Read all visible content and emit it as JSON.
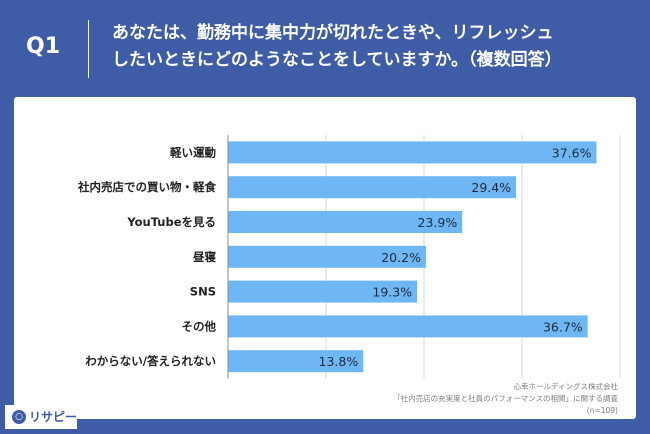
{
  "question": {
    "label": "Q1",
    "line1": "あなたは、勤務中に集中力が切れたときや、リフレッシュ",
    "line2": "したいときにどのようなことをしていますか。（複数回答）"
  },
  "chart_data": {
    "type": "bar",
    "orientation": "horizontal",
    "categories": [
      "軽い運動",
      "社内売店での買い物・軽食",
      "YouTubeを見る",
      "昼寝",
      "SNS",
      "その他",
      "わからない/答えられない"
    ],
    "values": [
      37.6,
      29.4,
      23.9,
      20.2,
      19.3,
      36.7,
      13.8
    ],
    "value_labels": [
      "37.6%",
      "29.4%",
      "23.9%",
      "20.2%",
      "19.3%",
      "36.7%",
      "13.8%"
    ],
    "xlim": [
      0,
      40
    ],
    "grid": true,
    "bar_color": "#6fb7f4"
  },
  "footer": {
    "line1": "心幸ホールディングス株式会社",
    "line2": "「社内売店の充実度と社員のパフォーマンスの相関」に関する調査",
    "line3": "(n=109)"
  },
  "brand": {
    "icon": "search-bubble-icon",
    "name": "リサピー"
  }
}
